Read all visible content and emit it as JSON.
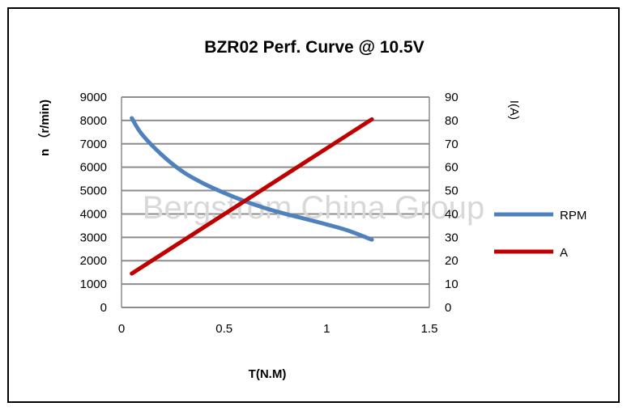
{
  "chart_data": {
    "type": "line",
    "title": "BZR02 Perf.  Curve @ 10.5V",
    "xlabel": "T(N.M)",
    "ylabel": "n （r/min)",
    "y2label": "I(A)",
    "watermark": "Bergstrom China Group",
    "xlim": [
      0,
      1.5
    ],
    "ylim": [
      0,
      9000
    ],
    "y2lim": [
      0,
      90
    ],
    "x_ticks": [
      "0",
      "0.5",
      "1",
      "1.5"
    ],
    "y_ticks": [
      "0",
      "1000",
      "2000",
      "3000",
      "4000",
      "5000",
      "6000",
      "7000",
      "8000",
      "9000"
    ],
    "y2_ticks": [
      "0",
      "10",
      "20",
      "30",
      "40",
      "50",
      "60",
      "70",
      "80",
      "90"
    ],
    "grid": true,
    "legend_position": "right",
    "series": [
      {
        "name": "RPM",
        "axis": "left",
        "color": "#4f81bd",
        "points": [
          [
            0.05,
            8100
          ],
          [
            0.1,
            7400
          ],
          [
            0.2,
            6500
          ],
          [
            0.3,
            5800
          ],
          [
            0.4,
            5300
          ],
          [
            0.5,
            4900
          ],
          [
            0.6,
            4550
          ],
          [
            0.7,
            4250
          ],
          [
            0.8,
            4000
          ],
          [
            0.9,
            3780
          ],
          [
            1.0,
            3550
          ],
          [
            1.1,
            3300
          ],
          [
            1.22,
            2900
          ]
        ]
      },
      {
        "name": "A",
        "axis": "right",
        "color": "#c00000",
        "points": [
          [
            0.05,
            14.5
          ],
          [
            1.22,
            80.5
          ]
        ]
      }
    ]
  }
}
